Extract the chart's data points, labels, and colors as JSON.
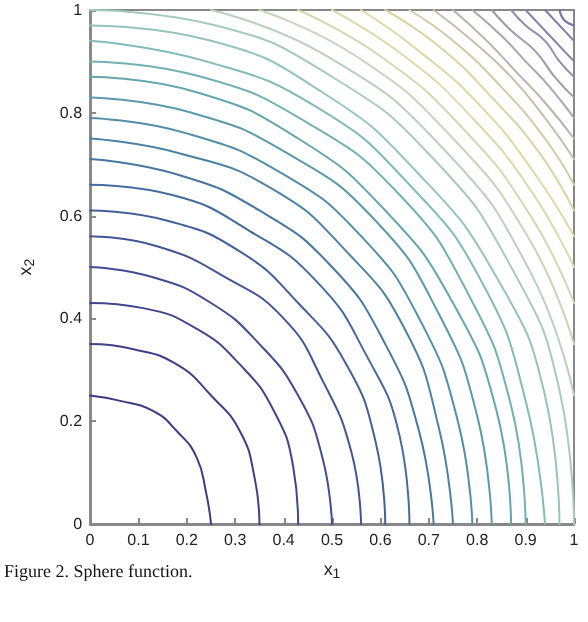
{
  "chart_data": {
    "type": "line",
    "xlabel": "x$_{1}$",
    "ylabel": "x$_{2}$",
    "annotations": [
      "Figure 2. Sphere function."
    ],
    "xlim": [
      0,
      1
    ],
    "xticks": [
      0,
      0.1,
      0.2,
      0.3,
      0.4,
      0.5,
      0.6,
      0.7,
      0.8,
      0.9,
      1
    ],
    "ylim": [
      0,
      1
    ],
    "yticks": [
      0,
      0.2,
      0.4,
      0.6,
      0.8,
      1
    ],
    "series": [
      {
        "color": "#3f3a86",
        "x": [
          0.25,
          0.24,
          0.22,
          0.18,
          0.13,
          0.06,
          0
        ],
        "values": [
          0,
          0.06,
          0.13,
          0.18,
          0.22,
          0.24,
          0.25
        ]
      },
      {
        "color": "#3f3f8a",
        "x": [
          0.35,
          0.34,
          0.31,
          0.25,
          0.18,
          0.09,
          0
        ],
        "values": [
          0,
          0.09,
          0.18,
          0.25,
          0.31,
          0.34,
          0.35
        ]
      },
      {
        "color": "#40458e",
        "x": [
          0.43,
          0.42,
          0.38,
          0.31,
          0.22,
          0.11,
          0
        ],
        "values": [
          0,
          0.11,
          0.22,
          0.31,
          0.38,
          0.42,
          0.43
        ]
      },
      {
        "color": "#414d92",
        "x": [
          0.5,
          0.48,
          0.43,
          0.35,
          0.25,
          0.13,
          0
        ],
        "values": [
          0,
          0.13,
          0.25,
          0.35,
          0.43,
          0.48,
          0.5
        ]
      },
      {
        "color": "#425696",
        "x": [
          0.56,
          0.54,
          0.48,
          0.4,
          0.28,
          0.14,
          0
        ],
        "values": [
          0,
          0.14,
          0.28,
          0.4,
          0.48,
          0.54,
          0.56
        ]
      },
      {
        "color": "#43609a",
        "x": [
          0.61,
          0.59,
          0.53,
          0.43,
          0.31,
          0.16,
          0
        ],
        "values": [
          0,
          0.16,
          0.31,
          0.43,
          0.53,
          0.59,
          0.61
        ]
      },
      {
        "color": "#456b9e",
        "x": [
          0.66,
          0.64,
          0.57,
          0.47,
          0.33,
          0.17,
          0
        ],
        "values": [
          0,
          0.17,
          0.33,
          0.47,
          0.57,
          0.64,
          0.66
        ]
      },
      {
        "color": "#4876a2",
        "x": [
          0.71,
          0.68,
          0.61,
          0.5,
          0.35,
          0.18,
          0
        ],
        "values": [
          0,
          0.18,
          0.35,
          0.5,
          0.61,
          0.68,
          0.71
        ]
      },
      {
        "color": "#4c82a6",
        "x": [
          0.75,
          0.72,
          0.65,
          0.53,
          0.38,
          0.19,
          0
        ],
        "values": [
          0,
          0.19,
          0.38,
          0.53,
          0.65,
          0.72,
          0.75
        ]
      },
      {
        "color": "#528ea8",
        "x": [
          0.79,
          0.76,
          0.68,
          0.56,
          0.4,
          0.2,
          0
        ],
        "values": [
          0,
          0.2,
          0.4,
          0.56,
          0.68,
          0.76,
          0.79
        ]
      },
      {
        "color": "#5a9aaa",
        "x": [
          0.83,
          0.8,
          0.72,
          0.59,
          0.41,
          0.21,
          0
        ],
        "values": [
          0,
          0.21,
          0.41,
          0.59,
          0.72,
          0.8,
          0.83
        ]
      },
      {
        "color": "#64a6ad",
        "x": [
          0.87,
          0.84,
          0.75,
          0.61,
          0.43,
          0.22,
          0
        ],
        "values": [
          0,
          0.22,
          0.43,
          0.61,
          0.75,
          0.84,
          0.87
        ]
      },
      {
        "color": "#72b1b2",
        "x": [
          0.9,
          0.87,
          0.78,
          0.64,
          0.45,
          0.23,
          0
        ],
        "values": [
          0,
          0.23,
          0.45,
          0.64,
          0.78,
          0.87,
          0.9
        ]
      },
      {
        "color": "#82bbb7",
        "x": [
          0.94,
          0.9,
          0.81,
          0.66,
          0.47,
          0.24,
          0
        ],
        "values": [
          0,
          0.24,
          0.47,
          0.66,
          0.81,
          0.9,
          0.94
        ]
      },
      {
        "color": "#94c4bb",
        "x": [
          0.97,
          0.94,
          0.84,
          0.68,
          0.48,
          0.25,
          0
        ],
        "values": [
          0,
          0.25,
          0.48,
          0.68,
          0.84,
          0.94,
          0.97
        ]
      },
      {
        "color": "#a6cbbd",
        "x": [
          1,
          0.97,
          0.87,
          0.71,
          0.5,
          0.26,
          0
        ],
        "values": [
          0,
          0.26,
          0.5,
          0.71,
          0.87,
          0.97,
          1
        ]
      },
      {
        "color": "#b7d1bc",
        "x": [
          0.25,
          0.49,
          0.73,
          0.91,
          1
        ],
        "values": [
          1,
          0.91,
          0.73,
          0.49,
          0.25
        ]
      },
      {
        "color": "#c6d5b8",
        "x": [
          0.35,
          0.55,
          0.75,
          0.91,
          1
        ],
        "values": [
          1,
          0.91,
          0.75,
          0.55,
          0.35
        ]
      },
      {
        "color": "#d3d8b2",
        "x": [
          0.43,
          0.6,
          0.77,
          0.91,
          1
        ],
        "values": [
          1,
          0.91,
          0.77,
          0.6,
          0.43
        ]
      },
      {
        "color": "#dcd9aa",
        "x": [
          0.5,
          0.65,
          0.79,
          0.91,
          1
        ],
        "values": [
          1,
          0.91,
          0.79,
          0.65,
          0.5
        ]
      },
      {
        "color": "#dfd7a4",
        "x": [
          0.56,
          0.68,
          0.81,
          0.92,
          1
        ],
        "values": [
          1,
          0.92,
          0.81,
          0.68,
          0.56
        ]
      },
      {
        "color": "#dcd2a2",
        "x": [
          0.61,
          0.72,
          0.83,
          0.93,
          1
        ],
        "values": [
          1,
          0.93,
          0.83,
          0.72,
          0.61
        ]
      },
      {
        "color": "#d3c9a4",
        "x": [
          0.66,
          0.75,
          0.85,
          0.94,
          1
        ],
        "values": [
          1,
          0.94,
          0.85,
          0.75,
          0.66
        ]
      },
      {
        "color": "#c7bea8",
        "x": [
          0.71,
          0.79,
          0.87,
          0.94,
          1
        ],
        "values": [
          1,
          0.94,
          0.87,
          0.79,
          0.71
        ]
      },
      {
        "color": "#b9b2ab",
        "x": [
          0.75,
          0.82,
          0.88,
          0.94,
          1
        ],
        "values": [
          1,
          0.94,
          0.88,
          0.82,
          0.75
        ]
      },
      {
        "color": "#aaa6ad",
        "x": [
          0.79,
          0.85,
          0.9,
          0.95,
          1
        ],
        "values": [
          1,
          0.95,
          0.9,
          0.85,
          0.79
        ]
      },
      {
        "color": "#9c9aae",
        "x": [
          0.83,
          0.87,
          0.92,
          0.96,
          1
        ],
        "values": [
          1,
          0.96,
          0.92,
          0.87,
          0.83
        ]
      },
      {
        "color": "#8f8fae",
        "x": [
          0.87,
          0.9,
          0.94,
          0.97,
          1
        ],
        "values": [
          1,
          0.97,
          0.94,
          0.9,
          0.87
        ]
      },
      {
        "color": "#8585ab",
        "x": [
          0.9,
          0.95,
          1
        ],
        "values": [
          1,
          0.95,
          0.9
        ]
      },
      {
        "color": "#7c7ca8",
        "x": [
          0.94,
          0.97,
          1
        ],
        "values": [
          1,
          0.97,
          0.94
        ]
      },
      {
        "color": "#7474a4",
        "x": [
          0.97,
          0.98,
          1
        ],
        "values": [
          1,
          0.98,
          0.97
        ]
      }
    ]
  }
}
